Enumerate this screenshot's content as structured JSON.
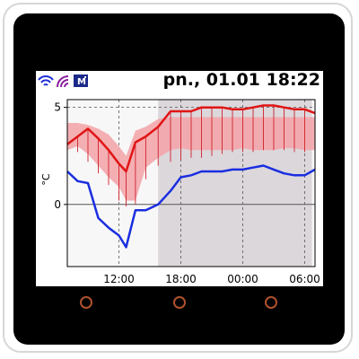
{
  "header": {
    "datetime": "pn., 01.01 18:22"
  },
  "icons": [
    "wifi-icon",
    "signal-icon",
    "module-icon"
  ],
  "module_badge": "M",
  "colors": {
    "max_line": "#e01515",
    "min_line": "#1a2ee0",
    "band": "#f3a6ab",
    "whisker": "#d0202a",
    "night_shade": "#dcd7db",
    "bezel": "#000000",
    "button_ring": "#b0522c"
  },
  "chart_data": {
    "type": "line",
    "ylabel": "°C",
    "yticks": [
      0,
      5
    ],
    "ylim": [
      -3.2,
      5.4
    ],
    "xlim": [
      7.0,
      31.0
    ],
    "xticks": [
      12,
      18,
      24,
      30
    ],
    "xtick_labels": [
      "12:00",
      "18:00",
      "00:00",
      "06:00"
    ],
    "grid": true,
    "shaded_x_range": [
      15.8,
      30.7
    ],
    "x": [
      7.0,
      8.0,
      9.0,
      10.0,
      11.0,
      12.0,
      12.7,
      13.6,
      14.6,
      15.8,
      17.0,
      18.0,
      19.0,
      20.0,
      21.0,
      22.0,
      23.0,
      24.0,
      25.0,
      26.0,
      27.0,
      28.0,
      29.0,
      30.0,
      31.0
    ],
    "series": [
      {
        "values": [
          3.1,
          3.5,
          3.9,
          3.4,
          2.8,
          2.1,
          1.7,
          3.2,
          3.5,
          4.0,
          4.8,
          4.8,
          4.8,
          5.0,
          5.0,
          5.0,
          4.9,
          4.9,
          5.0,
          5.1,
          5.1,
          5.0,
          4.9,
          4.9,
          4.7
        ]
      },
      {
        "values": [
          1.7,
          1.2,
          1.1,
          -0.7,
          -1.2,
          -1.6,
          -2.2,
          -0.3,
          -0.3,
          0.0,
          0.7,
          1.4,
          1.5,
          1.7,
          1.7,
          1.7,
          1.8,
          1.8,
          1.9,
          2.0,
          1.8,
          1.6,
          1.5,
          1.5,
          1.8
        ]
      }
    ],
    "band_low": [
      2.8,
      3.0,
      2.6,
      2.0,
      1.4,
      0.9,
      0.2,
      0.2,
      1.9,
      2.4,
      2.8,
      2.9,
      2.8,
      2.8,
      2.8,
      2.8,
      2.8,
      2.9,
      2.8,
      2.8,
      2.8,
      2.9,
      2.9,
      2.8,
      2.8
    ],
    "band_high": [
      4.2,
      4.2,
      4.1,
      3.9,
      3.6,
      3.0,
      2.5,
      3.8,
      4.0,
      4.4,
      4.5,
      4.5,
      4.5,
      4.5,
      4.5,
      4.5,
      4.5,
      4.5,
      4.5,
      4.5,
      4.5,
      4.5,
      4.5,
      4.5,
      4.5
    ],
    "whisker_low": [
      2.5,
      2.7,
      2.2,
      1.6,
      1.0,
      0.2,
      -0.1,
      0.0,
      1.3,
      2.0,
      2.2,
      2.3,
      2.4,
      2.4,
      2.5,
      2.6,
      2.7,
      2.7,
      2.7,
      2.8,
      2.8,
      2.8,
      2.7,
      2.7,
      2.7
    ]
  }
}
